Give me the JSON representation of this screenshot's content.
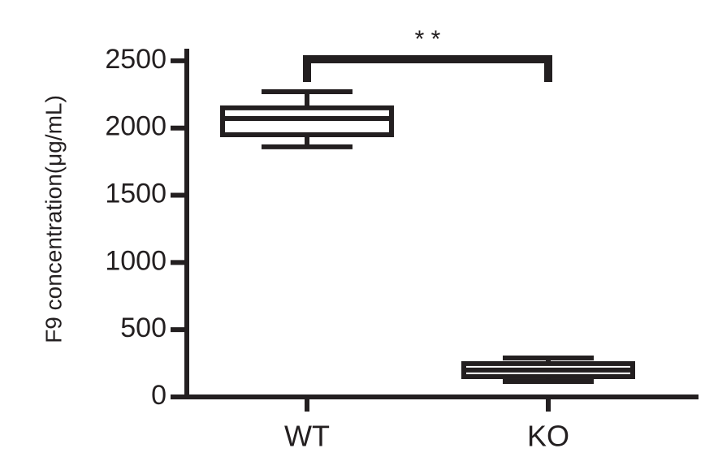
{
  "chart_data": {
    "type": "box",
    "y_label": "F9 concentration(μg/mL)",
    "categories": [
      "WT",
      "KO"
    ],
    "min": [
      1860,
      115
    ],
    "q1": [
      1950,
      151
    ],
    "median": [
      2071,
      200
    ],
    "q3": [
      2150,
      248
    ],
    "max": [
      2270,
      290
    ],
    "color": "#231f20",
    "ylim": [
      0,
      2590
    ],
    "yticks": [
      0,
      500,
      1000,
      1500,
      2000,
      2500
    ],
    "annotation": "* *"
  }
}
